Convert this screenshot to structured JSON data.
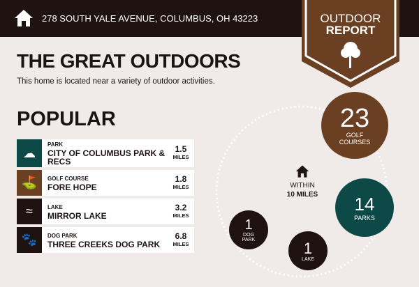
{
  "header": {
    "address": "278 SOUTH YALE AVENUE, COLUMBUS, OH 43223",
    "badge_line1": "OUTDOOR",
    "badge_line2": "REPORT"
  },
  "main": {
    "title": "THE GREAT OUTDOORS",
    "subtitle": "This home is located near a variety of outdoor activities.",
    "popular_heading": "POPULAR"
  },
  "popular": [
    {
      "category": "PARK",
      "name": "CITY OF COLUMBUS PARK & RECS",
      "distance": "1.5",
      "unit": "MILES",
      "color": "#0d4a47",
      "icon": "park-icon"
    },
    {
      "category": "GOLF COURSE",
      "name": "FORE HOPE",
      "distance": "1.8",
      "unit": "MILES",
      "color": "#6b3f22",
      "icon": "golf-bag-icon"
    },
    {
      "category": "LAKE",
      "name": "MIRROR LAKE",
      "distance": "3.2",
      "unit": "MILES",
      "color": "#1e1310",
      "icon": "waves-icon"
    },
    {
      "category": "DOG PARK",
      "name": "THREE CREEKS DOG PARK",
      "distance": "6.8",
      "unit": "MILES",
      "color": "#1e1310",
      "icon": "paw-icon"
    }
  ],
  "radius": {
    "line1": "WITHIN",
    "line2": "10 MILES"
  },
  "counts": [
    {
      "value": "23",
      "label1": "GOLF",
      "label2": "COURSES",
      "color": "#6b3f22"
    },
    {
      "value": "14",
      "label1": "PARKS",
      "label2": "",
      "color": "#0d4a47"
    },
    {
      "value": "1",
      "label1": "DOG",
      "label2": "PARK",
      "color": "#1e1310"
    },
    {
      "value": "1",
      "label1": "LAKE",
      "label2": "",
      "color": "#1e1310"
    }
  ]
}
